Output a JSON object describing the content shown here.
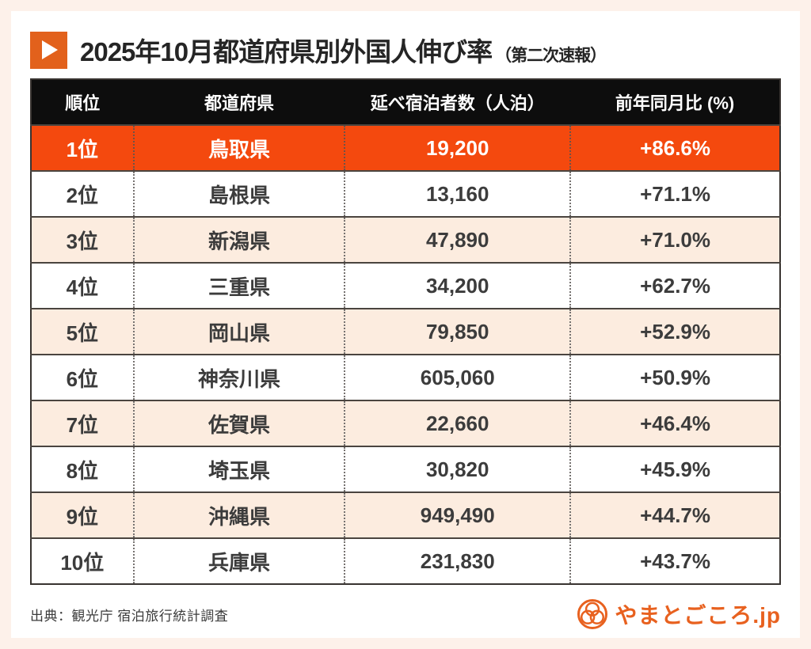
{
  "title": {
    "main": "2025年10月都道府県別外国人伸び率",
    "sub": "（第二次速報）"
  },
  "chart_data": {
    "type": "table",
    "title": "2025年10月都道府県別外国人伸び率（第二次速報）",
    "columns": [
      "順位",
      "都道府県",
      "延べ宿泊者数（人泊）",
      "前年同月比 (%)"
    ],
    "rows": [
      {
        "rank": "1位",
        "prefecture": "鳥取県",
        "stays": "19,200",
        "yoy": "+86.6%",
        "highlight": true
      },
      {
        "rank": "2位",
        "prefecture": "島根県",
        "stays": "13,160",
        "yoy": "+71.1%",
        "highlight": false
      },
      {
        "rank": "3位",
        "prefecture": "新潟県",
        "stays": "47,890",
        "yoy": "+71.0%",
        "highlight": false
      },
      {
        "rank": "4位",
        "prefecture": "三重県",
        "stays": "34,200",
        "yoy": "+62.7%",
        "highlight": false
      },
      {
        "rank": "5位",
        "prefecture": "岡山県",
        "stays": "79,850",
        "yoy": "+52.9%",
        "highlight": false
      },
      {
        "rank": "6位",
        "prefecture": "神奈川県",
        "stays": "605,060",
        "yoy": "+50.9%",
        "highlight": false
      },
      {
        "rank": "7位",
        "prefecture": "佐賀県",
        "stays": "22,660",
        "yoy": "+46.4%",
        "highlight": false
      },
      {
        "rank": "8位",
        "prefecture": "埼玉県",
        "stays": "30,820",
        "yoy": "+45.9%",
        "highlight": false
      },
      {
        "rank": "9位",
        "prefecture": "沖縄県",
        "stays": "949,490",
        "yoy": "+44.7%",
        "highlight": false
      },
      {
        "rank": "10位",
        "prefecture": "兵庫県",
        "stays": "231,830",
        "yoy": "+43.7%",
        "highlight": false
      }
    ]
  },
  "footer": {
    "source": "出典：観光庁 宿泊旅行統計調査",
    "logo_text": "やまとごころ.jp"
  },
  "icons": {
    "title_marker": "play-triangle-icon",
    "logo_mark": "trefoil-circle-icon"
  },
  "colors": {
    "page_background": "#fdf1ea",
    "card_background": "#ffffff",
    "header_row": "#0d0d0d",
    "highlight_row": "#f4490e",
    "alt_row": "#fcecdf",
    "accent_icon": "#e2611c",
    "logo_orange": "#e8611f",
    "body_text": "#3c3c3c"
  }
}
